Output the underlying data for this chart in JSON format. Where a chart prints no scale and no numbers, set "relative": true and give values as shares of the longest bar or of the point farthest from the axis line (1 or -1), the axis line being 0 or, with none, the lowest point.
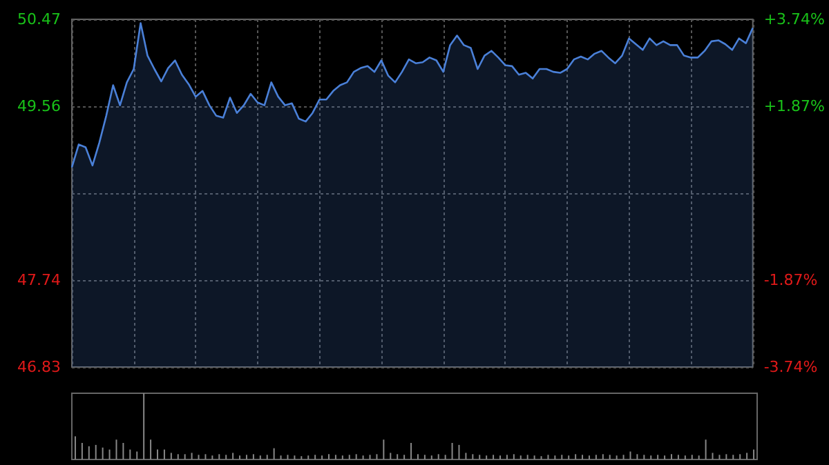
{
  "chart_data": [
    {
      "type": "area",
      "categories": [
        null,
        null,
        null,
        null,
        null,
        null,
        null,
        null,
        null,
        null,
        null,
        null,
        null,
        null,
        null,
        null,
        null,
        null,
        null,
        null,
        null,
        null,
        null,
        null,
        null,
        null,
        null,
        null,
        null,
        null,
        null,
        null,
        null,
        null,
        null,
        null,
        null,
        null,
        null,
        null,
        null,
        null,
        null,
        null,
        null,
        null,
        null,
        null,
        null,
        null,
        null,
        null,
        null,
        null,
        null,
        null,
        null,
        null,
        null,
        null,
        null,
        null,
        null,
        null,
        null,
        null,
        null,
        null,
        null,
        null,
        null,
        null,
        null,
        null,
        null,
        null,
        null,
        null,
        null,
        null,
        null,
        null,
        null,
        null,
        null,
        null,
        null,
        null,
        null,
        null,
        null,
        null,
        null,
        null,
        null,
        null,
        null,
        null,
        null,
        null
      ],
      "series": [
        {
          "color": "#4a80d8",
          "values": [
            48.92,
            49.16,
            49.13,
            48.94,
            49.18,
            49.46,
            49.78,
            49.57,
            49.81,
            49.95,
            50.43,
            50.09,
            49.95,
            49.82,
            49.96,
            50.04,
            49.89,
            49.79,
            49.66,
            49.72,
            49.57,
            49.46,
            49.44,
            49.65,
            49.49,
            49.57,
            49.69,
            49.6,
            49.57,
            49.81,
            49.66,
            49.57,
            49.59,
            49.43,
            49.4,
            49.49,
            49.63,
            49.63,
            49.72,
            49.78,
            49.81,
            49.92,
            49.96,
            49.98,
            49.92,
            50.04,
            49.88,
            49.81,
            49.92,
            50.05,
            50.01,
            50.02,
            50.07,
            50.04,
            49.92,
            50.2,
            50.3,
            50.2,
            50.17,
            49.95,
            50.09,
            50.14,
            50.07,
            49.99,
            49.98,
            49.89,
            49.91,
            49.85,
            49.95,
            49.95,
            49.92,
            49.91,
            49.95,
            50.05,
            50.08,
            50.05,
            50.11,
            50.14,
            50.07,
            50.01,
            50.09,
            50.27,
            50.21,
            50.15,
            50.27,
            50.2,
            50.24,
            50.2,
            50.2,
            50.09,
            50.07,
            50.07,
            50.14,
            50.24,
            50.25,
            50.21,
            50.15,
            50.27,
            50.22,
            50.38
          ]
        }
      ],
      "ylim": [
        46.83,
        50.47
      ],
      "yticks": [
        46.83,
        47.74,
        {
          "value": 48.65,
          "label": null
        },
        49.56,
        50.47
      ],
      "y2lim": [
        -3.74,
        3.74
      ],
      "y2ticks": [
        {
          "value": -3.74,
          "label": "-3.74%"
        },
        {
          "value": -1.87,
          "label": "-1.87%"
        },
        {
          "value": 0,
          "label": null
        },
        {
          "value": 1.87,
          "label": "+1.87%"
        },
        {
          "value": 3.74,
          "label": "+3.74%"
        }
      ],
      "tick_labels": "y",
      "grid": true
    },
    {
      "type": "bar",
      "relative": true,
      "categories": [
        null,
        null,
        null,
        null,
        null,
        null,
        null,
        null,
        null,
        null,
        null,
        null,
        null,
        null,
        null,
        null,
        null,
        null,
        null,
        null,
        null,
        null,
        null,
        null,
        null,
        null,
        null,
        null,
        null,
        null,
        null,
        null,
        null,
        null,
        null,
        null,
        null,
        null,
        null,
        null,
        null,
        null,
        null,
        null,
        null,
        null,
        null,
        null,
        null,
        null,
        null,
        null,
        null,
        null,
        null,
        null,
        null,
        null,
        null,
        null,
        null,
        null,
        null,
        null,
        null,
        null,
        null,
        null,
        null,
        null,
        null,
        null,
        null,
        null,
        null,
        null,
        null,
        null,
        null,
        null,
        null,
        null,
        null,
        null,
        null,
        null,
        null,
        null,
        null,
        null,
        null,
        null,
        null,
        null,
        null,
        null,
        null,
        null,
        null,
        null
      ],
      "series": [
        {
          "color": "#888888",
          "values": [
            0.35,
            0.25,
            0.2,
            0.22,
            0.18,
            0.15,
            0.3,
            0.25,
            0.15,
            0.12,
            1,
            0.3,
            0.15,
            0.15,
            0.1,
            0.08,
            0.08,
            0.1,
            0.07,
            0.08,
            0.06,
            0.08,
            0.07,
            0.1,
            0.06,
            0.07,
            0.08,
            0.06,
            0.07,
            0.17,
            0.06,
            0.07,
            0.06,
            0.05,
            0.06,
            0.07,
            0.06,
            0.08,
            0.07,
            0.06,
            0.07,
            0.08,
            0.06,
            0.07,
            0.08,
            0.3,
            0.1,
            0.08,
            0.07,
            0.25,
            0.08,
            0.07,
            0.06,
            0.08,
            0.07,
            0.25,
            0.22,
            0.1,
            0.08,
            0.07,
            0.06,
            0.07,
            0.06,
            0.07,
            0.08,
            0.06,
            0.07,
            0.06,
            0.05,
            0.07,
            0.06,
            0.07,
            0.06,
            0.08,
            0.07,
            0.06,
            0.07,
            0.08,
            0.07,
            0.06,
            0.07,
            0.12,
            0.08,
            0.07,
            0.06,
            0.07,
            0.06,
            0.08,
            0.07,
            0.06,
            0.07,
            0.06,
            0.3,
            0.1,
            0.07,
            0.08,
            0.07,
            0.08,
            0.1,
            0.15
          ]
        }
      ],
      "tick_labels": false
    }
  ]
}
